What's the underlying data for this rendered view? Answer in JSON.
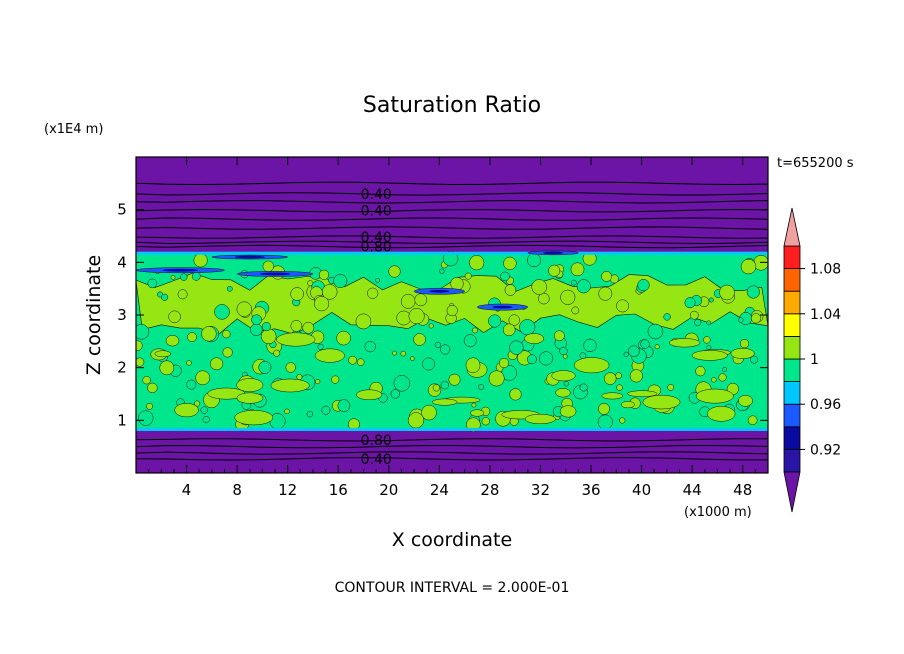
{
  "chart_data": {
    "type": "heatmap",
    "title": "Saturation Ratio",
    "xlabel": "X coordinate",
    "ylabel": "Z coordinate",
    "x_scale_label": "(x1000 m)",
    "y_scale_label": "(x1E4 m)",
    "time_label": "t=655200 s",
    "contour_interval_label": "CONTOUR INTERVAL = 2.000E-01",
    "xlim": [
      0,
      50
    ],
    "ylim": [
      0,
      6
    ],
    "x_ticks": [
      4,
      8,
      12,
      16,
      20,
      24,
      28,
      32,
      36,
      40,
      44,
      48
    ],
    "y_ticks": [
      1,
      2,
      3,
      4,
      5
    ],
    "contour_lines": [
      {
        "label": "0.40",
        "x": 19,
        "y": 5.3
      },
      {
        "label": "0.40",
        "x": 19,
        "y": 4.98
      },
      {
        "label": "0.40",
        "x": 19,
        "y": 4.48
      },
      {
        "label": "0.80",
        "x": 19,
        "y": 4.3
      },
      {
        "label": "0.80",
        "x": 19,
        "y": 0.63
      },
      {
        "label": "0.40",
        "x": 19,
        "y": 0.27
      }
    ],
    "upper_dry_lines": [
      5.5,
      5.3,
      5.15,
      4.98,
      4.82,
      4.65,
      4.48,
      4.38,
      4.3
    ],
    "lower_dry_lines": [
      0.63,
      0.5,
      0.38,
      0.27
    ],
    "moist_layer": {
      "bottom": 0.8,
      "top": 4.2
    },
    "colorbar": {
      "levels": [
        0.92,
        0.94,
        0.96,
        0.98,
        1.0,
        1.02,
        1.04,
        1.06,
        1.08
      ],
      "tick_labels": [
        "1.08",
        "1.04",
        "1",
        "0.96",
        "0.92"
      ],
      "tick_values": [
        1.08,
        1.04,
        1.0,
        0.96,
        0.92
      ],
      "colors": [
        "#6c14a6",
        "#2a14a6",
        "#0a0aa0",
        "#1a5aff",
        "#00c8ff",
        "#00e68c",
        "#96e614",
        "#ffff00",
        "#ffaa00",
        "#ff6400",
        "#ff1e1e",
        "#f0a0a0"
      ]
    }
  }
}
